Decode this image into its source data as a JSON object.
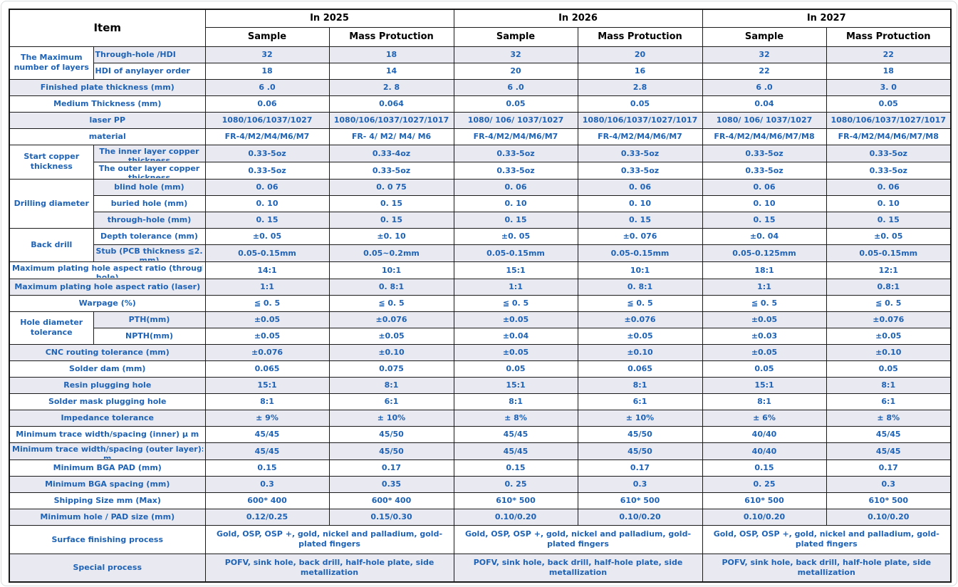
{
  "colors": {
    "blue": "#1E63B5",
    "stripe": "#E9E9F2",
    "border": "#1a1a1a",
    "headertext": "#000000"
  },
  "header": {
    "item_label": "Item",
    "years": [
      {
        "label": "In 2025",
        "columns": [
          "Sample",
          "Mass Protuction"
        ]
      },
      {
        "label": "In 2026",
        "columns": [
          "Sample",
          "Mass Protuction"
        ]
      },
      {
        "label": "In 2027",
        "columns": [
          "Sample",
          "Mass Protuction"
        ]
      }
    ]
  },
  "rows": [
    {
      "stripe": true,
      "group": {
        "label": "The Maximum number of layers",
        "rowspan": 2
      },
      "sub": "Through-hole /HDI",
      "sub_align": "left",
      "values": [
        "32",
        "18",
        "32",
        "20",
        "32",
        "22"
      ]
    },
    {
      "stripe": false,
      "in_group": true,
      "sub": "HDI of  anylayer order",
      "sub_align": "left",
      "values": [
        "18",
        "14",
        "20",
        "16",
        "22",
        "18"
      ]
    },
    {
      "stripe": true,
      "label": "Finished plate thickness (mm)",
      "values": [
        "6 .0",
        "2. 8",
        "6 .0",
        "2.8",
        "6 .0",
        "3. 0"
      ]
    },
    {
      "stripe": false,
      "label": "Medium Thickness (mm)",
      "values": [
        "0.06",
        "0.064",
        "0.05",
        "0.05",
        "0.04",
        "0.05"
      ]
    },
    {
      "stripe": true,
      "label": "laser PP",
      "values": [
        "1080/106/1037/1027",
        "1080/106/1037/1027/1017",
        "1080/ 106/ 1037/1027",
        "1080/106/1037/1027/1017",
        "1080/ 106/ 1037/1027",
        "1080/106/1037/1027/1017"
      ]
    },
    {
      "stripe": false,
      "label": "material",
      "values": [
        "FR-4/M2/M4/M6/M7",
        "FR- 4/ M2/ M4/ M6",
        "FR-4/M2/M4/M6/M7",
        "FR-4/M2/M4/M6/M7",
        "FR-4/M2/M4/M6/M7/M8",
        "FR-4/M2/M4/M6/M7/M8"
      ]
    },
    {
      "stripe": true,
      "group": {
        "label": "Start copper thickness",
        "rowspan": 2
      },
      "sub": [
        "The inner layer  copper",
        "thickness"
      ],
      "values": [
        "0.33-5oz",
        "0.33-4oz",
        "0.33-5oz",
        "0.33-5oz",
        "0.33-5oz",
        "0.33-5oz"
      ]
    },
    {
      "stripe": false,
      "in_group": true,
      "sub": [
        "The outer layer  copper",
        "thickness"
      ],
      "values": [
        "0.33-5oz",
        "0.33-5oz",
        "0.33-5oz",
        "0.33-5oz",
        "0.33-5oz",
        "0.33-5oz"
      ]
    },
    {
      "stripe": true,
      "group": {
        "label": "Drilling  diameter",
        "rowspan": 3
      },
      "sub": "blind hole (mm)",
      "values": [
        "0. 06",
        "0. 0 75",
        "0. 06",
        "0. 06",
        "0. 06",
        "0. 06"
      ]
    },
    {
      "stripe": false,
      "in_group": true,
      "sub": "buried hole (mm)",
      "values": [
        "0. 10",
        "0. 15",
        "0. 10",
        "0. 10",
        "0. 10",
        "0. 10"
      ]
    },
    {
      "stripe": true,
      "in_group": true,
      "sub": "through-hole (mm)",
      "values": [
        "0. 15",
        "0. 15",
        "0. 15",
        "0. 15",
        "0. 15",
        "0. 15"
      ]
    },
    {
      "stripe": false,
      "group": {
        "label": "Back drill",
        "rowspan": 2
      },
      "sub": "Depth tolerance (mm)",
      "values": [
        "±0. 05",
        "±0. 10",
        "±0. 05",
        "±0. 076",
        "±0. 04",
        "±0. 05"
      ]
    },
    {
      "stripe": true,
      "in_group": true,
      "sub": [
        "Stub (PCB thickness ≦2.2",
        "mm)"
      ],
      "values": [
        "0.05-0.15mm",
        "0.05~0.2mm",
        "0.05-0.15mm",
        "0.05-0.15mm",
        "0.05-0.125mm",
        "0.05-0.15mm"
      ]
    },
    {
      "stripe": false,
      "label": [
        "Maximum plating hole aspect ratio (through",
        "hole)"
      ],
      "values": [
        "14:1",
        "10:1",
        "15:1",
        "10:1",
        "18:1",
        "12:1"
      ]
    },
    {
      "stripe": true,
      "label": "Maximum plating hole aspect ratio (laser)",
      "values": [
        "1:1",
        "0. 8:1",
        "1:1",
        "0. 8:1",
        "1:1",
        "0.8:1"
      ]
    },
    {
      "stripe": false,
      "label": "Warpage (%)",
      "values": [
        "≦ 0. 5",
        "≦ 0. 5",
        "≦ 0. 5",
        "≦ 0. 5",
        "≦ 0. 5",
        "≦ 0. 5"
      ]
    },
    {
      "stripe": true,
      "group": {
        "label": "Hole diameter tolerance",
        "rowspan": 2
      },
      "sub": "PTH(mm)",
      "values": [
        "±0.05",
        "±0.076",
        "±0.05",
        "±0.076",
        "±0.05",
        "±0.076"
      ]
    },
    {
      "stripe": false,
      "in_group": true,
      "sub": "NPTH(mm)",
      "values": [
        "±0.05",
        "±0.05",
        "±0.04",
        "±0.05",
        "±0.03",
        "±0.05"
      ]
    },
    {
      "stripe": true,
      "label": "CNC routing tolerance (mm)",
      "values": [
        "±0.076",
        "±0.10",
        "±0.05",
        "±0.10",
        "±0.05",
        "±0.10"
      ]
    },
    {
      "stripe": false,
      "label": "Solder dam (mm)",
      "values": [
        "0.065",
        "0.075",
        "0.05",
        "0.065",
        "0.05",
        "0.05"
      ]
    },
    {
      "stripe": true,
      "label": "Resin plugging hole",
      "values": [
        "15:1",
        "8:1",
        "15:1",
        "8:1",
        "15:1",
        "8:1"
      ]
    },
    {
      "stripe": false,
      "label": "Solder mask plugging hole",
      "values": [
        "8:1",
        "6:1",
        "8:1",
        "6:1",
        "8:1",
        "6:1"
      ]
    },
    {
      "stripe": true,
      "label": "Impedance tolerance",
      "values": [
        "± 9%",
        "± 10%",
        "± 8%",
        "± 10%",
        "± 6%",
        "± 8%"
      ]
    },
    {
      "stripe": false,
      "label": "Minimum  trace width/spacing (inner) μ m",
      "values": [
        "45/45",
        "45/50",
        "45/45",
        "45/50",
        "40/40",
        "45/45"
      ]
    },
    {
      "stripe": true,
      "label": [
        "Minimum trace width/spacing (outer layer): μ",
        "m"
      ],
      "values": [
        "45/45",
        "45/50",
        "45/45",
        "45/50",
        "40/40",
        "45/45"
      ]
    },
    {
      "stripe": false,
      "label": "Minimum BGA PAD (mm)",
      "values": [
        "0.15",
        "0.17",
        "0.15",
        "0.17",
        "0.15",
        "0.17"
      ]
    },
    {
      "stripe": true,
      "label": "Minimum BGA spacing (mm)",
      "values": [
        "0.3",
        "0.35",
        "0. 25",
        "0.3",
        "0. 25",
        "0.3"
      ]
    },
    {
      "stripe": false,
      "label": "Shipping Size mm (Max)",
      "values": [
        "600* 400",
        "600* 400",
        "610* 500",
        "610* 500",
        "610* 500",
        "610* 500"
      ]
    },
    {
      "stripe": true,
      "label": "Minimum hole / PAD size (mm)",
      "values": [
        "0.12/0.25",
        "0.15/0.30",
        "0.10/0.20",
        "0.10/0.20",
        "0.10/0.20",
        "0.10/0.20"
      ]
    },
    {
      "stripe": false,
      "tall": true,
      "label": "Surface finishing process",
      "year_values": [
        "Gold, OSP, OSP +, gold, nickel and palladium, gold-plated fingers",
        "Gold, OSP, OSP +, gold, nickel and palladium, gold-plated fingers",
        "Gold, OSP, OSP +, gold, nickel and palladium, gold-plated fingers"
      ]
    },
    {
      "stripe": true,
      "tall": true,
      "label": "Special process",
      "year_values": [
        "POFV, sink hole, back drill, half-hole plate, side metallization",
        "POFV, sink hole, back drill, half-hole plate, side metallization",
        "POFV, sink hole, back drill, half-hole plate, side metallization"
      ]
    }
  ]
}
